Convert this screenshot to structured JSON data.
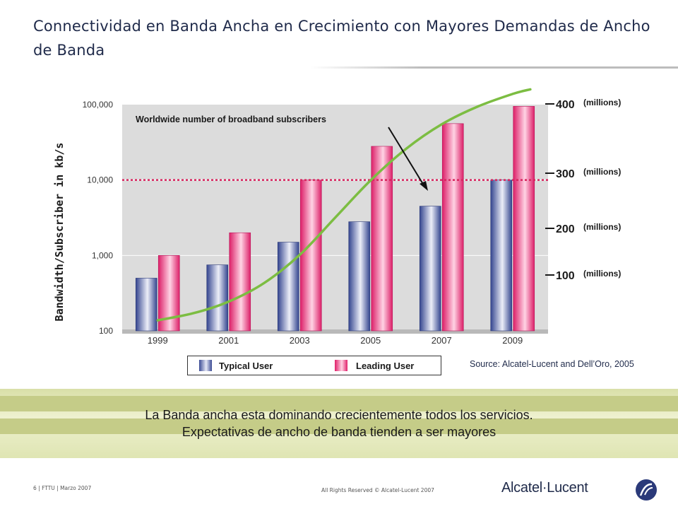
{
  "slide": {
    "title": "Connectividad en Banda Ancha en Crecimiento con Mayores Demandas de Ancho de Banda",
    "banner_line1": "La Banda ancha esta dominando crecientemente todos los servicios.",
    "banner_line2": "Expectativas de ancho de banda tienden a ser mayores",
    "footer_left": "6 | FTTU | Marzo 2007",
    "footer_center": "All Rights Reserved © Alcatel-Lucent 2007",
    "logo_text": "Alcatel·Lucent",
    "source": "Source: Alcatel-Lucent and Dell’Oro, 2005"
  },
  "legend": {
    "typical": "Typical User",
    "leading": "Leading User"
  },
  "colors": {
    "typical": "#3a4a94",
    "leading": "#e0206a",
    "subscribers_line": "#7cbd42",
    "reference_line": "#d8245e",
    "plot_bg": "#dcdcdc"
  },
  "chart_data": {
    "type": "bar",
    "y_scale": "log",
    "ylim": [
      100,
      100000
    ],
    "ylabel": "Bandwidth/Subscriber in kb/s",
    "y_ticks": [
      "100",
      "1,000",
      "10,000",
      "100,000"
    ],
    "categories": [
      "1999",
      "2001",
      "2003",
      "2005",
      "2007",
      "2009"
    ],
    "series": [
      {
        "name": "Typical User",
        "values": [
          500,
          750,
          1500,
          2800,
          4500,
          10000
        ]
      },
      {
        "name": "Leading User",
        "values": [
          1000,
          2000,
          10000,
          28000,
          56000,
          95000
        ]
      }
    ],
    "reference_line_value": 10000,
    "subscribers": {
      "annotation": "Worldwide number of broadband subscribers",
      "unit": "(millions)",
      "right_axis_ticks": [
        "400",
        "300",
        "200",
        "100"
      ],
      "right_axis_values": [
        400,
        300,
        200,
        100
      ],
      "right_axis_range": [
        0,
        400
      ],
      "x": [
        1999,
        2000,
        2001,
        2002,
        2003,
        2004,
        2005,
        2006,
        2007,
        2008,
        2009,
        2009.5
      ],
      "values": [
        6,
        18,
        38,
        70,
        118,
        182,
        246,
        300,
        342,
        372,
        394,
        402
      ]
    }
  }
}
